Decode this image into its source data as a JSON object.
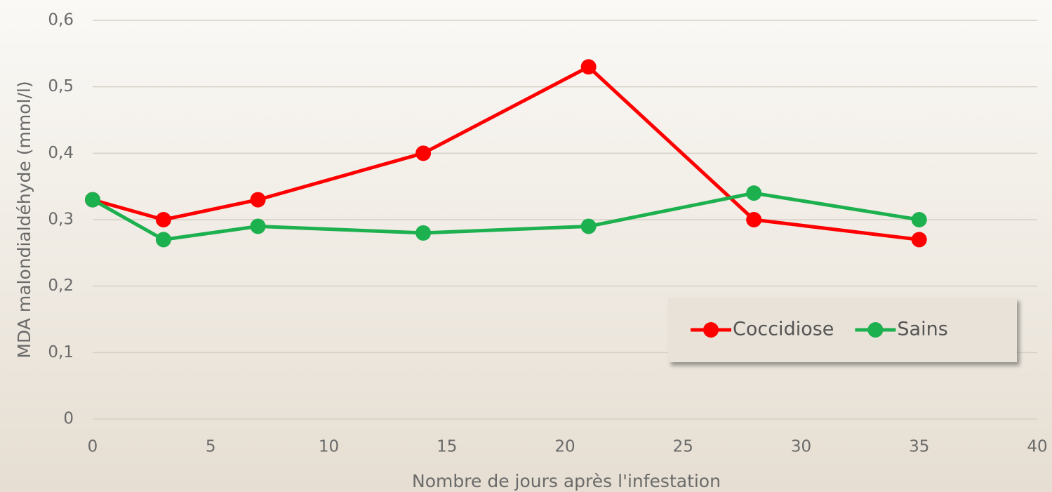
{
  "chart_data": {
    "type": "line",
    "x_label": "Nombre de jours après l'infestation",
    "y_label": "MDA malondialdéhyde (mmol/l)",
    "x": [
      0,
      3,
      7,
      14,
      21,
      28,
      35
    ],
    "series": [
      {
        "name": "Coccidiose",
        "color": "#ff0000",
        "values": [
          0.33,
          0.3,
          0.33,
          0.4,
          0.53,
          0.3,
          0.27
        ]
      },
      {
        "name": "Sains",
        "color": "#1db04f",
        "values": [
          0.33,
          0.27,
          0.29,
          0.28,
          0.29,
          0.34,
          0.3
        ]
      }
    ],
    "xlim": [
      0,
      40
    ],
    "xticks": [
      0,
      5,
      10,
      15,
      20,
      25,
      30,
      35,
      40
    ],
    "ylim": [
      0,
      0.6
    ],
    "yticks": [
      0,
      {
        "value": 0.1,
        "label": "0,1"
      },
      {
        "value": 0.2,
        "label": "0,2"
      },
      {
        "value": 0.3,
        "label": "0,3"
      },
      {
        "value": 0.4,
        "label": "0,4"
      },
      {
        "value": 0.5,
        "label": "0,5"
      },
      {
        "value": 0.6,
        "label": "0,6"
      }
    ],
    "grid": true,
    "legend": "lower right"
  }
}
